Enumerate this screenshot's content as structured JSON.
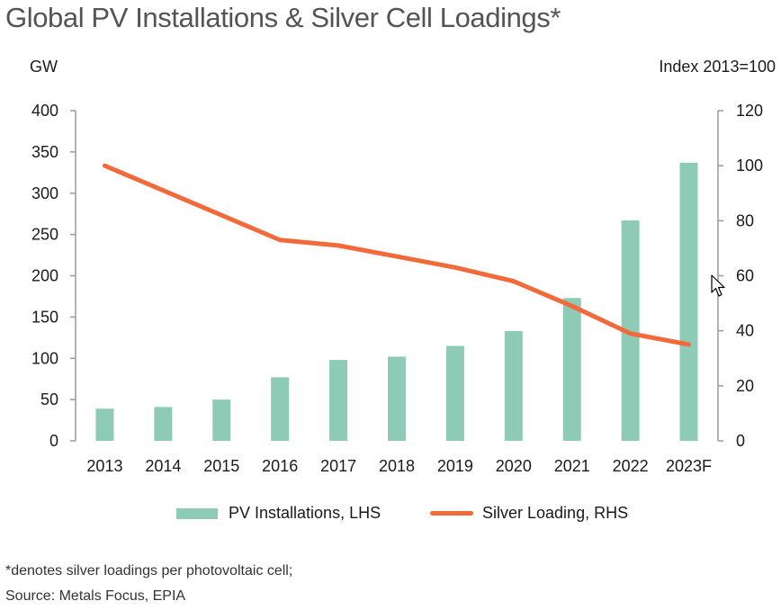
{
  "title": "Global PV Installations & Silver Cell Loadings*",
  "colors": {
    "bar": "#8ECBB6",
    "line": "#F26A3A",
    "axis": "#9a9a9a"
  },
  "chart_data": {
    "type": "bar+line",
    "title": "Global PV Installations & Silver Cell Loadings*",
    "categories": [
      "2013",
      "2014",
      "2015",
      "2016",
      "2017",
      "2018",
      "2019",
      "2020",
      "2021",
      "2022",
      "2023F"
    ],
    "series": [
      {
        "name": "PV Installations, LHS",
        "type": "bar",
        "axis": "left",
        "values": [
          39,
          41,
          50,
          77,
          98,
          102,
          115,
          133,
          173,
          267,
          337
        ]
      },
      {
        "name": "Silver Loading, RHS",
        "type": "line",
        "axis": "right",
        "values": [
          100,
          91,
          82,
          73,
          71,
          67,
          63,
          58,
          49,
          39,
          35
        ]
      }
    ],
    "ylabel_left": "GW",
    "ylabel_right": "Index 2013=100",
    "ylim_left": [
      0,
      400
    ],
    "ylim_right": [
      0,
      120
    ],
    "yticks_left": [
      0,
      50,
      100,
      150,
      200,
      250,
      300,
      350,
      400
    ],
    "yticks_right": [
      0,
      20,
      40,
      60,
      80,
      100,
      120
    ],
    "grid": false,
    "legend_position": "bottom-center"
  },
  "legend": {
    "bar_label": "PV Installations, LHS",
    "line_label": "Silver Loading, RHS"
  },
  "footnotes": {
    "note": "*denotes silver loadings per photovoltaic cell;",
    "source": "Source: Metals Focus, EPIA"
  }
}
